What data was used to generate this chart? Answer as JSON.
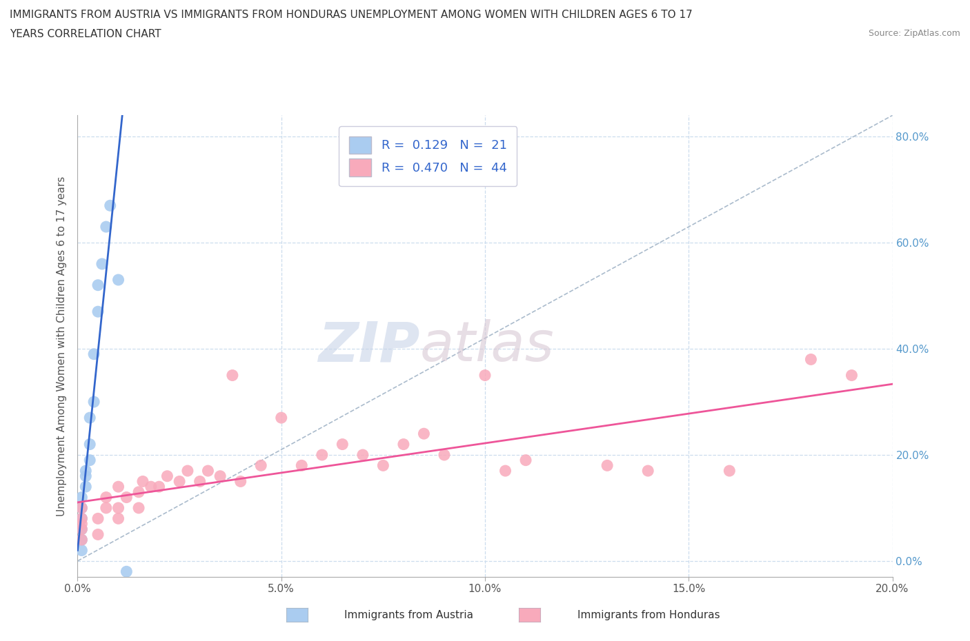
{
  "title_line1": "IMMIGRANTS FROM AUSTRIA VS IMMIGRANTS FROM HONDURAS UNEMPLOYMENT AMONG WOMEN WITH CHILDREN AGES 6 TO 17",
  "title_line2": "YEARS CORRELATION CHART",
  "source": "Source: ZipAtlas.com",
  "ylabel": "Unemployment Among Women with Children Ages 6 to 17 years",
  "watermark_zip": "ZIP",
  "watermark_atlas": "atlas",
  "austria_R": 0.129,
  "austria_N": 21,
  "honduras_R": 0.47,
  "honduras_N": 44,
  "austria_color": "#aaccf0",
  "honduras_color": "#f8aabb",
  "austria_line_color": "#3366cc",
  "honduras_line_color": "#ee5599",
  "diag_line_color": "#aabbcc",
  "xlim": [
    0.0,
    0.2
  ],
  "ylim": [
    0.0,
    0.84
  ],
  "xticks": [
    0.0,
    0.05,
    0.1,
    0.15,
    0.2
  ],
  "yticks": [
    0.0,
    0.2,
    0.4,
    0.6,
    0.8
  ],
  "austria_x": [
    0.001,
    0.001,
    0.001,
    0.001,
    0.001,
    0.001,
    0.002,
    0.002,
    0.002,
    0.003,
    0.003,
    0.003,
    0.004,
    0.004,
    0.005,
    0.005,
    0.006,
    0.007,
    0.008,
    0.01,
    0.012
  ],
  "austria_y": [
    0.02,
    0.04,
    0.06,
    0.08,
    0.1,
    0.12,
    0.14,
    0.16,
    0.17,
    0.19,
    0.22,
    0.27,
    0.3,
    0.39,
    0.47,
    0.52,
    0.56,
    0.63,
    0.67,
    0.53,
    -0.02
  ],
  "honduras_x": [
    0.001,
    0.001,
    0.001,
    0.001,
    0.001,
    0.005,
    0.005,
    0.007,
    0.007,
    0.01,
    0.01,
    0.01,
    0.012,
    0.015,
    0.015,
    0.016,
    0.018,
    0.02,
    0.022,
    0.025,
    0.027,
    0.03,
    0.032,
    0.035,
    0.038,
    0.04,
    0.045,
    0.05,
    0.055,
    0.06,
    0.065,
    0.07,
    0.075,
    0.08,
    0.085,
    0.09,
    0.1,
    0.105,
    0.11,
    0.13,
    0.14,
    0.16,
    0.18,
    0.19
  ],
  "honduras_y": [
    0.04,
    0.06,
    0.07,
    0.08,
    0.1,
    0.05,
    0.08,
    0.1,
    0.12,
    0.08,
    0.1,
    0.14,
    0.12,
    0.1,
    0.13,
    0.15,
    0.14,
    0.14,
    0.16,
    0.15,
    0.17,
    0.15,
    0.17,
    0.16,
    0.35,
    0.15,
    0.18,
    0.27,
    0.18,
    0.2,
    0.22,
    0.2,
    0.18,
    0.22,
    0.24,
    0.2,
    0.35,
    0.17,
    0.19,
    0.18,
    0.17,
    0.17,
    0.38,
    0.35
  ],
  "legend_label_austria": "R =  0.129   N =  21",
  "legend_label_honduras": "R =  0.470   N =  44",
  "bottom_label_austria": "Immigrants from Austria",
  "bottom_label_honduras": "Immigrants from Honduras"
}
